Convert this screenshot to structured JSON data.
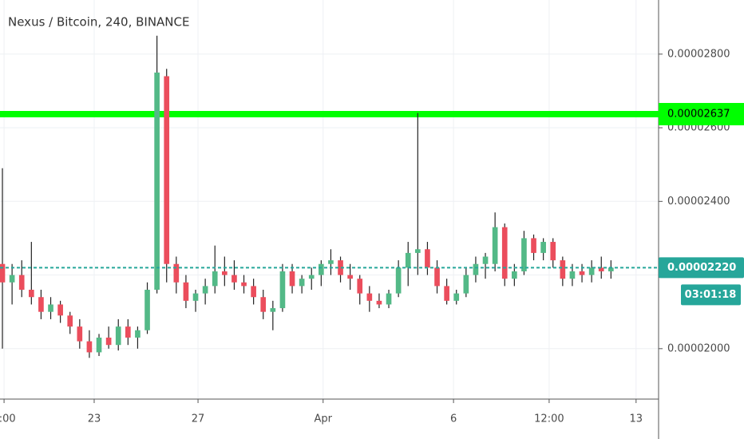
{
  "chart_data": {
    "type": "candlestick",
    "title": "Nexus / Bitcoin, 240, BINANCE",
    "up_color": "#53b987",
    "down_color": "#eb4d5c",
    "x": [
      0,
      1,
      2,
      3,
      4,
      5,
      6,
      7,
      8,
      9,
      10,
      11,
      12,
      13,
      14,
      15,
      16,
      17,
      18,
      19,
      20,
      21,
      22,
      23,
      24,
      25,
      26,
      27,
      28,
      29,
      30,
      31,
      32,
      33,
      34,
      35,
      36,
      37,
      38,
      39,
      40,
      41,
      42,
      43,
      44,
      45,
      46,
      47,
      48,
      49,
      50,
      51,
      52,
      53,
      54,
      55,
      56,
      57,
      58,
      59,
      60,
      61,
      62,
      63
    ],
    "open": [
      2.23e-05,
      2.18e-05,
      2.2e-05,
      2.16e-05,
      2.14e-05,
      2.1e-05,
      2.12e-05,
      2.09e-05,
      2.06e-05,
      2.02e-05,
      1.99e-05,
      2.03e-05,
      2.01e-05,
      2.06e-05,
      2.03e-05,
      2.05e-05,
      2.16e-05,
      2.74e-05,
      2.23e-05,
      2.18e-05,
      2.13e-05,
      2.15e-05,
      2.17e-05,
      2.21e-05,
      2.2e-05,
      2.18e-05,
      2.17e-05,
      2.14e-05,
      2.1e-05,
      2.11e-05,
      2.21e-05,
      2.17e-05,
      2.19e-05,
      2.2e-05,
      2.23e-05,
      2.24e-05,
      2.2e-05,
      2.19e-05,
      2.15e-05,
      2.13e-05,
      2.12e-05,
      2.15e-05,
      2.22e-05,
      2.26e-05,
      2.27e-05,
      2.22e-05,
      2.17e-05,
      2.13e-05,
      2.15e-05,
      2.2e-05,
      2.23e-05,
      2.23e-05,
      2.33e-05,
      2.19e-05,
      2.21e-05,
      2.3e-05,
      2.26e-05,
      2.29e-05,
      2.24e-05,
      2.19e-05,
      2.21e-05,
      2.2e-05,
      2.22e-05,
      2.21e-05
    ],
    "high": [
      2.49e-05,
      2.23e-05,
      2.24e-05,
      2.29e-05,
      2.16e-05,
      2.14e-05,
      2.13e-05,
      2.1e-05,
      2.08e-05,
      2.05e-05,
      2.04e-05,
      2.06e-05,
      2.08e-05,
      2.08e-05,
      2.06e-05,
      2.18e-05,
      2.85e-05,
      2.76e-05,
      2.25e-05,
      2.2e-05,
      2.16e-05,
      2.19e-05,
      2.28e-05,
      2.25e-05,
      2.24e-05,
      2.2e-05,
      2.19e-05,
      2.16e-05,
      2.13e-05,
      2.23e-05,
      2.23e-05,
      2.2e-05,
      2.22e-05,
      2.24e-05,
      2.27e-05,
      2.25e-05,
      2.23e-05,
      2.2e-05,
      2.17e-05,
      2.15e-05,
      2.16e-05,
      2.24e-05,
      2.29e-05,
      2.64e-05,
      2.29e-05,
      2.24e-05,
      2.19e-05,
      2.16e-05,
      2.22e-05,
      2.25e-05,
      2.26e-05,
      2.37e-05,
      2.34e-05,
      2.23e-05,
      2.32e-05,
      2.31e-05,
      2.3e-05,
      2.3e-05,
      2.25e-05,
      2.23e-05,
      2.23e-05,
      2.24e-05,
      2.25e-05,
      2.24e-05
    ],
    "low": [
      2e-05,
      2.12e-05,
      2.14e-05,
      2.12e-05,
      2.08e-05,
      2.08e-05,
      2.07e-05,
      2.04e-05,
      2e-05,
      1.975e-05,
      1.98e-05,
      2e-05,
      1.995e-05,
      2.01e-05,
      2e-05,
      2.04e-05,
      2.15e-05,
      2.18e-05,
      2.15e-05,
      2.11e-05,
      2.1e-05,
      2.12e-05,
      2.15e-05,
      2.17e-05,
      2.16e-05,
      2.15e-05,
      2.12e-05,
      2.08e-05,
      2.05e-05,
      2.1e-05,
      2.15e-05,
      2.15e-05,
      2.16e-05,
      2.17e-05,
      2.2e-05,
      2.18e-05,
      2.16e-05,
      2.12e-05,
      2.1e-05,
      2.11e-05,
      2.11e-05,
      2.14e-05,
      2.17e-05,
      2.2e-05,
      2.2e-05,
      2.15e-05,
      2.12e-05,
      2.12e-05,
      2.14e-05,
      2.18e-05,
      2.19e-05,
      2.21e-05,
      2.17e-05,
      2.17e-05,
      2.2e-05,
      2.24e-05,
      2.24e-05,
      2.22e-05,
      2.17e-05,
      2.17e-05,
      2.18e-05,
      2.18e-05,
      2.19e-05,
      2.19e-05
    ],
    "close": [
      2.18e-05,
      2.2e-05,
      2.16e-05,
      2.14e-05,
      2.1e-05,
      2.12e-05,
      2.09e-05,
      2.06e-05,
      2.02e-05,
      1.99e-05,
      2.03e-05,
      2.01e-05,
      2.06e-05,
      2.03e-05,
      2.05e-05,
      2.16e-05,
      2.75e-05,
      2.23e-05,
      2.18e-05,
      2.13e-05,
      2.15e-05,
      2.17e-05,
      2.21e-05,
      2.2e-05,
      2.18e-05,
      2.17e-05,
      2.14e-05,
      2.1e-05,
      2.11e-05,
      2.21e-05,
      2.17e-05,
      2.19e-05,
      2.2e-05,
      2.23e-05,
      2.24e-05,
      2.2e-05,
      2.19e-05,
      2.15e-05,
      2.13e-05,
      2.12e-05,
      2.15e-05,
      2.22e-05,
      2.26e-05,
      2.27e-05,
      2.22e-05,
      2.17e-05,
      2.13e-05,
      2.15e-05,
      2.2e-05,
      2.23e-05,
      2.25e-05,
      2.33e-05,
      2.19e-05,
      2.21e-05,
      2.3e-05,
      2.26e-05,
      2.29e-05,
      2.24e-05,
      2.19e-05,
      2.21e-05,
      2.2e-05,
      2.22e-05,
      2.21e-05,
      2.22e-05
    ],
    "xlim": [
      -0.25,
      67.93
    ],
    "xticks": [
      {
        "value": 0.17,
        "label": "2:00"
      },
      {
        "value": 9.5,
        "label": "23"
      },
      {
        "value": 20.25,
        "label": "27"
      },
      {
        "value": 33.2,
        "label": "Apr"
      },
      {
        "value": 46.7,
        "label": "6"
      },
      {
        "value": 56.6,
        "label": "12:00"
      },
      {
        "value": 65.6,
        "label": "13"
      }
    ],
    "ylim": [
      1.863e-05,
      2.947e-05
    ],
    "yticks": [
      {
        "value": 2e-05,
        "label": "0.00002000"
      },
      {
        "value": 2.2e-05,
        "label": "0.00002200"
      },
      {
        "value": 2.4e-05,
        "label": "0.00002400"
      },
      {
        "value": 2.6e-05,
        "label": "0.00002600"
      },
      {
        "value": 2.8e-05,
        "label": "0.00002800"
      }
    ],
    "grid": true,
    "horizontal_line": {
      "value": 2.637e-05,
      "label": "0.00002637",
      "color": "#00ff00"
    },
    "last_price": {
      "value": 2.22e-05,
      "label": "0.00002220",
      "countdown": "03:01:18",
      "color": "#26a69a"
    }
  }
}
